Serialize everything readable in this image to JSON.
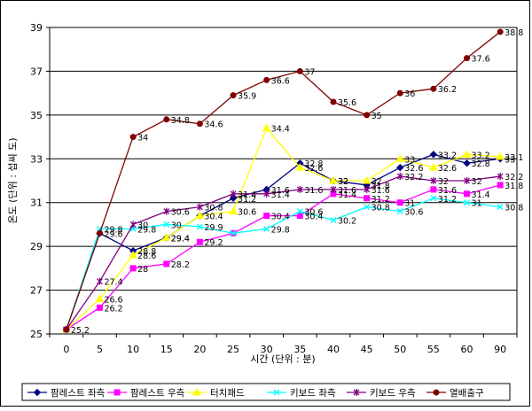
{
  "chart_data": {
    "type": "line",
    "title": "",
    "xlabel": "시간 (단위 : 분)",
    "ylabel": "온도 (단위 : 섭씨 도)",
    "x": [
      0,
      5,
      10,
      15,
      20,
      25,
      30,
      35,
      40,
      45,
      50,
      55,
      60,
      90
    ],
    "x_ticks": [
      0,
      5,
      10,
      15,
      20,
      25,
      30,
      35,
      40,
      45,
      50,
      55,
      60,
      90
    ],
    "ylim": [
      25,
      39
    ],
    "y_ticks": [
      25,
      27,
      29,
      31,
      33,
      35,
      37,
      39
    ],
    "grid": true,
    "legend_position": "bottom",
    "series": [
      {
        "name": "팜레스트 좌측",
        "color": "#000080",
        "marker": "diamond",
        "values": [
          25.2,
          29.6,
          28.8,
          29.4,
          30.4,
          31.2,
          31.6,
          32.8,
          32.0,
          31.8,
          32.6,
          33.2,
          32.8,
          33.0
        ],
        "labels": [
          "25.2",
          "29.6",
          "28.8",
          "29.4",
          "30.4",
          "31.2",
          "31.6",
          "32.8",
          "32",
          "31.8",
          "32.6",
          "33.2",
          "32.8",
          "33"
        ]
      },
      {
        "name": "팜레스트 우측",
        "color": "#ff00ff",
        "marker": "square",
        "values": [
          25.2,
          26.2,
          28.0,
          28.2,
          29.2,
          29.6,
          30.4,
          30.4,
          31.4,
          31.2,
          31.0,
          31.6,
          31.4,
          31.8
        ],
        "labels": [
          "",
          "26.2",
          "28",
          "28.2",
          "29.2",
          "",
          "30.4",
          "30.4",
          "31.4",
          "31.2",
          "31",
          "31.6",
          "31.4",
          "31.8"
        ]
      },
      {
        "name": "터치패드",
        "color": "#ffff00",
        "marker": "triangle",
        "values": [
          25.2,
          26.6,
          28.6,
          29.4,
          30.4,
          30.6,
          34.4,
          32.6,
          32.0,
          32.0,
          33.0,
          32.6,
          33.2,
          33.1
        ],
        "labels": [
          "",
          "26.6",
          "28.6",
          "29.4",
          "",
          "30.6",
          "34.4",
          "32.6",
          "32",
          "32",
          "33",
          "32.6",
          "33.2",
          "33.1"
        ]
      },
      {
        "name": "키보드 좌측",
        "color": "#00ffff",
        "marker": "x",
        "values": [
          25.2,
          29.8,
          29.8,
          30.0,
          29.9,
          29.6,
          29.8,
          30.6,
          30.2,
          30.8,
          30.6,
          31.2,
          31.0,
          30.8
        ],
        "labels": [
          "",
          "29.8",
          "29.8",
          "30",
          "29.9",
          "",
          "29.8",
          "30.6",
          "30.2",
          "30.8",
          "30.6",
          "31.2",
          "31",
          "30.8"
        ]
      },
      {
        "name": "키보드 우측",
        "color": "#800080",
        "marker": "star",
        "values": [
          25.2,
          27.4,
          30.0,
          30.6,
          30.8,
          31.4,
          31.4,
          31.6,
          31.6,
          31.6,
          32.2,
          32.0,
          32.0,
          32.2
        ],
        "labels": [
          "",
          "27.4",
          "30",
          "30.6",
          "30.8",
          "31.4",
          "31.4",
          "31.6",
          "31.6",
          "31.6",
          "32.2",
          "32",
          "32",
          "32.2"
        ]
      },
      {
        "name": "열배출구",
        "color": "#800000",
        "marker": "circle",
        "values": [
          25.2,
          29.6,
          34.0,
          34.8,
          34.6,
          35.9,
          36.6,
          37.0,
          35.6,
          35.0,
          36.0,
          36.2,
          37.6,
          38.8
        ],
        "labels": [
          "",
          "",
          "34",
          "34.8",
          "34.6",
          "35.9",
          "36.6",
          "37",
          "35.6",
          "35",
          "36",
          "36.2",
          "37.6",
          "38.8"
        ]
      }
    ]
  }
}
